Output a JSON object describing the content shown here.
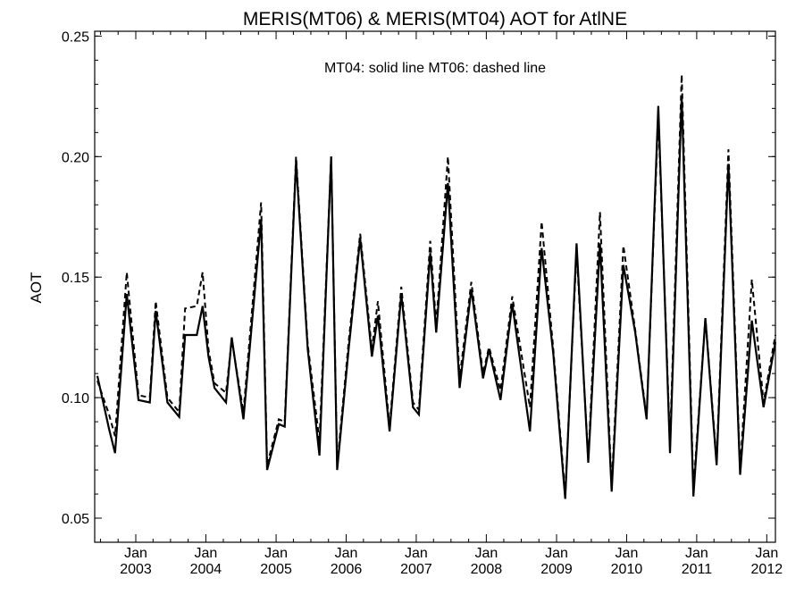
{
  "chart_data": {
    "type": "line",
    "title": "MERIS(MT06) & MERIS(MT04)  AOT for AtlNE",
    "annotation": "MT04: solid line   MT06: dashed line",
    "xlabel": "",
    "ylabel": "AOT",
    "xlim": [
      "2002-06-01",
      "2012-02-15"
    ],
    "ylim": [
      0.04,
      0.252
    ],
    "y_ticks": [
      "0.05",
      "0.10",
      "0.15",
      "0.20",
      "0.25"
    ],
    "y_tick_values": [
      0.05,
      0.1,
      0.15,
      0.2,
      0.25
    ],
    "x_ticks": [
      {
        "date": "2003-01-01",
        "month": "Jan",
        "year": "2003"
      },
      {
        "date": "2004-01-01",
        "month": "Jan",
        "year": "2004"
      },
      {
        "date": "2005-01-01",
        "month": "Jan",
        "year": "2005"
      },
      {
        "date": "2006-01-01",
        "month": "Jan",
        "year": "2006"
      },
      {
        "date": "2007-01-01",
        "month": "Jan",
        "year": "2007"
      },
      {
        "date": "2008-01-01",
        "month": "Jan",
        "year": "2008"
      },
      {
        "date": "2009-01-01",
        "month": "Jan",
        "year": "2009"
      },
      {
        "date": "2010-01-01",
        "month": "Jan",
        "year": "2010"
      },
      {
        "date": "2011-01-01",
        "month": "Jan",
        "year": "2011"
      },
      {
        "date": "2012-01-01",
        "month": "Jan",
        "year": "2012"
      }
    ],
    "grid": false,
    "series": [
      {
        "name": "MT04",
        "style": "solid",
        "color": "#000000",
        "x": [
          "2002-06",
          "2002-08",
          "2002-09",
          "2002-11",
          "2003-01",
          "2003-03",
          "2003-04",
          "2003-06",
          "2003-08",
          "2003-09",
          "2003-11",
          "2003-12",
          "2004-01",
          "2004-02",
          "2004-04",
          "2004-05",
          "2004-07",
          "2004-10",
          "2004-11",
          "2005-01",
          "2005-02",
          "2005-04",
          "2005-06",
          "2005-08",
          "2005-10",
          "2005-11",
          "2006-01",
          "2006-03",
          "2006-05",
          "2006-06",
          "2006-08",
          "2006-10",
          "2006-12",
          "2007-01",
          "2007-03",
          "2007-04",
          "2007-06",
          "2007-08",
          "2007-10",
          "2007-12",
          "2008-01",
          "2008-03",
          "2008-05",
          "2008-08",
          "2008-10",
          "2008-12",
          "2009-02",
          "2009-04",
          "2009-06",
          "2009-08",
          "2009-10",
          "2009-12",
          "2010-02",
          "2010-04",
          "2010-06",
          "2010-08",
          "2010-10",
          "2010-12",
          "2011-02",
          "2011-04",
          "2011-06",
          "2011-08",
          "2011-10",
          "2011-12",
          "2012-02"
        ],
        "values": [
          0.109,
          0.087,
          0.077,
          0.143,
          0.099,
          0.098,
          0.136,
          0.098,
          0.092,
          0.126,
          0.126,
          0.138,
          0.117,
          0.104,
          0.098,
          0.125,
          0.091,
          0.174,
          0.07,
          0.089,
          0.088,
          0.198,
          0.12,
          0.076,
          0.2,
          0.07,
          0.121,
          0.166,
          0.117,
          0.134,
          0.086,
          0.143,
          0.096,
          0.093,
          0.16,
          0.127,
          0.189,
          0.104,
          0.145,
          0.108,
          0.12,
          0.099,
          0.139,
          0.086,
          0.162,
          0.118,
          0.058,
          0.164,
          0.073,
          0.164,
          0.061,
          0.155,
          0.127,
          0.091,
          0.221,
          0.077,
          0.225,
          0.059,
          0.133,
          0.072,
          0.197,
          0.068,
          0.132,
          0.096,
          0.123
        ]
      },
      {
        "name": "MT06",
        "style": "dashed",
        "color": "#000000",
        "x": [
          "2002-06",
          "2002-08",
          "2002-09",
          "2002-11",
          "2003-01",
          "2003-03",
          "2003-04",
          "2003-06",
          "2003-08",
          "2003-09",
          "2003-11",
          "2003-12",
          "2004-01",
          "2004-02",
          "2004-04",
          "2004-05",
          "2004-07",
          "2004-10",
          "2004-11",
          "2005-01",
          "2005-02",
          "2005-04",
          "2005-06",
          "2005-08",
          "2005-10",
          "2005-11",
          "2006-01",
          "2006-03",
          "2006-05",
          "2006-06",
          "2006-08",
          "2006-10",
          "2006-12",
          "2007-01",
          "2007-03",
          "2007-04",
          "2007-06",
          "2007-08",
          "2007-10",
          "2007-12",
          "2008-01",
          "2008-03",
          "2008-05",
          "2008-08",
          "2008-10",
          "2008-12",
          "2009-02",
          "2009-04",
          "2009-06",
          "2009-08",
          "2009-10",
          "2009-12",
          "2010-02",
          "2010-04",
          "2010-06",
          "2010-08",
          "2010-10",
          "2010-12",
          "2011-02",
          "2011-04",
          "2011-06",
          "2011-08",
          "2011-10",
          "2011-12",
          "2012-02"
        ],
        "values": [
          0.107,
          0.093,
          0.084,
          0.152,
          0.101,
          0.1,
          0.14,
          0.1,
          0.094,
          0.137,
          0.138,
          0.152,
          0.12,
          0.106,
          0.102,
          0.124,
          0.094,
          0.181,
          0.072,
          0.091,
          0.09,
          0.2,
          0.122,
          0.082,
          0.2,
          0.072,
          0.124,
          0.168,
          0.12,
          0.14,
          0.088,
          0.146,
          0.098,
          0.095,
          0.165,
          0.13,
          0.2,
          0.108,
          0.148,
          0.11,
          0.121,
          0.103,
          0.142,
          0.096,
          0.173,
          0.12,
          0.06,
          0.161,
          0.074,
          0.177,
          0.063,
          0.163,
          0.128,
          0.092,
          0.217,
          0.081,
          0.234,
          0.062,
          0.133,
          0.074,
          0.203,
          0.07,
          0.149,
          0.098,
          0.126
        ]
      }
    ]
  }
}
